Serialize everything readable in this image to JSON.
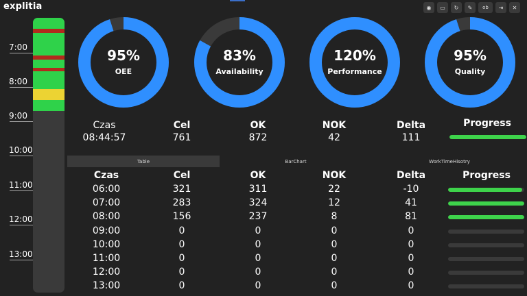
{
  "app": {
    "logo": "explitia",
    "logo_accent": "#2f8fff"
  },
  "toolbar": {
    "buttons": [
      {
        "icon": "circle-icon",
        "glyph": "◉"
      },
      {
        "icon": "card-icon",
        "glyph": "▭"
      },
      {
        "icon": "refresh-icon",
        "glyph": "↻"
      },
      {
        "icon": "pencil-icon",
        "glyph": "✎"
      },
      {
        "icon": "ob-label",
        "glyph": "ob"
      },
      {
        "icon": "logout-icon",
        "glyph": "⇥"
      },
      {
        "icon": "close-icon",
        "glyph": "✕"
      }
    ]
  },
  "timeline": {
    "hours": [
      "7:00",
      "8:00",
      "9:00",
      "10:00",
      "11:00",
      "12:00",
      "13:00"
    ],
    "colors": {
      "running": "#2fd24a",
      "stop": "#b22a1d",
      "warning": "#ecd333",
      "idle": "#3a3a3a"
    }
  },
  "gauges": [
    {
      "label": "OEE",
      "value_text": "95%",
      "percent": 95,
      "color": "#2f8fff"
    },
    {
      "label": "Availability",
      "value_text": "83%",
      "percent": 83,
      "color": "#2f8fff"
    },
    {
      "label": "Performance",
      "value_text": "120%",
      "percent": 100,
      "color": "#2f8fff"
    },
    {
      "label": "Quality",
      "value_text": "95%",
      "percent": 95,
      "color": "#2f8fff"
    }
  ],
  "summary": {
    "headers": {
      "czas": "Czas",
      "cel": "Cel",
      "ok": "OK",
      "nok": "NOK",
      "delta": "Delta",
      "progress": "Progress"
    },
    "values": {
      "czas": "08:44:57",
      "cel": "761",
      "ok": "872",
      "nok": "42",
      "delta": "111"
    },
    "progress_fraction": 1.0
  },
  "tabs": [
    {
      "label": "Table",
      "active": true
    },
    {
      "label": "BarChart",
      "active": false
    },
    {
      "label": "WorkTimeHisotry",
      "active": false
    }
  ],
  "table": {
    "headers": [
      "Czas",
      "Cel",
      "OK",
      "NOK",
      "Delta",
      "Progress"
    ],
    "rows": [
      {
        "czas": "06:00",
        "cel": "321",
        "ok": "311",
        "nok": "22",
        "delta": "-10",
        "progress": 0.97
      },
      {
        "czas": "07:00",
        "cel": "283",
        "ok": "324",
        "nok": "12",
        "delta": "41",
        "progress": 1.0
      },
      {
        "czas": "08:00",
        "cel": "156",
        "ok": "237",
        "nok": "8",
        "delta": "81",
        "progress": 1.0
      },
      {
        "czas": "09:00",
        "cel": "0",
        "ok": "0",
        "nok": "0",
        "delta": "0",
        "progress": 0
      },
      {
        "czas": "10:00",
        "cel": "0",
        "ok": "0",
        "nok": "0",
        "delta": "0",
        "progress": 0
      },
      {
        "czas": "11:00",
        "cel": "0",
        "ok": "0",
        "nok": "0",
        "delta": "0",
        "progress": 0
      },
      {
        "czas": "12:00",
        "cel": "0",
        "ok": "0",
        "nok": "0",
        "delta": "0",
        "progress": 0
      },
      {
        "czas": "13:00",
        "cel": "0",
        "ok": "0",
        "nok": "0",
        "delta": "0",
        "progress": 0
      }
    ]
  }
}
